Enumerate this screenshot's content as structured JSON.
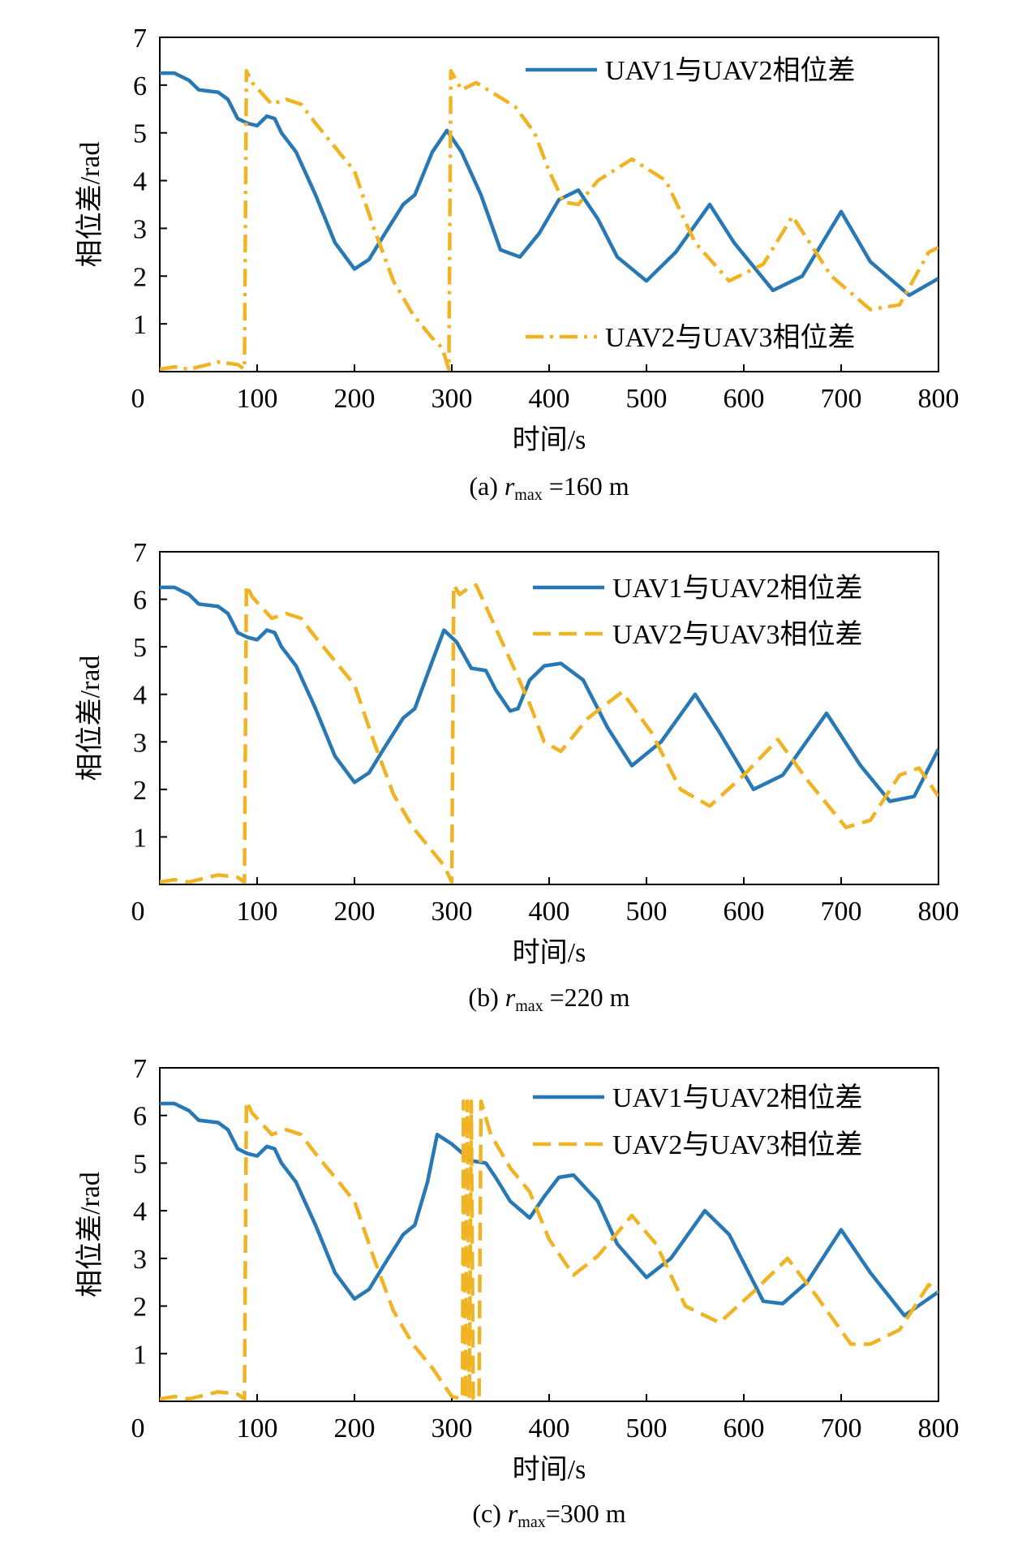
{
  "colors": {
    "series1": "#2878b5",
    "series2": "#f0b323",
    "axis": "#000000",
    "background": "#ffffff"
  },
  "chart_data": [
    {
      "type": "line",
      "caption_prefix": "(a) ",
      "caption_var": "r",
      "caption_sub": "max",
      "caption_suffix": " =160 m",
      "xlabel": "时间/s",
      "ylabel": "相位差/rad",
      "xlim": [
        0,
        800
      ],
      "ylim": [
        0,
        7
      ],
      "xticks": [
        "0",
        "100",
        "200",
        "300",
        "400",
        "500",
        "600",
        "700",
        "800"
      ],
      "yticks": [
        "1",
        "2",
        "3",
        "4",
        "5",
        "6",
        "7"
      ],
      "grid": false,
      "legend": "split: top-right and bottom-right",
      "series": [
        {
          "name": "UAV1与UAV2相位差",
          "style": "solid",
          "x": [
            0,
            15,
            30,
            40,
            60,
            70,
            80,
            90,
            100,
            110,
            118,
            125,
            140,
            160,
            180,
            200,
            215,
            230,
            250,
            262,
            280,
            295,
            310,
            330,
            350,
            370,
            390,
            410,
            430,
            450,
            470,
            500,
            530,
            565,
            590,
            630,
            660,
            700,
            730,
            770,
            800
          ],
          "y": [
            6.25,
            6.25,
            6.1,
            5.9,
            5.85,
            5.7,
            5.3,
            5.2,
            5.15,
            5.35,
            5.3,
            5.0,
            4.6,
            3.7,
            2.7,
            2.15,
            2.35,
            2.85,
            3.5,
            3.7,
            4.6,
            5.05,
            4.6,
            3.7,
            2.55,
            2.4,
            2.9,
            3.6,
            3.8,
            3.2,
            2.4,
            1.9,
            2.5,
            3.5,
            2.7,
            1.7,
            2.0,
            3.35,
            2.3,
            1.6,
            1.95
          ]
        },
        {
          "name": "UAV2与UAV3相位差",
          "style": "dashdot",
          "x": [
            0,
            15,
            30,
            50,
            60,
            80,
            87,
            89,
            95,
            115,
            130,
            145,
            160,
            180,
            200,
            220,
            240,
            260,
            280,
            290,
            297,
            299,
            310,
            325,
            345,
            365,
            385,
            400,
            415,
            430,
            450,
            485,
            520,
            550,
            585,
            620,
            650,
            690,
            730,
            760,
            790,
            800
          ],
          "y": [
            0.05,
            0.1,
            0.05,
            0.15,
            0.2,
            0.15,
            0.05,
            6.3,
            6.05,
            5.6,
            5.7,
            5.6,
            5.2,
            4.7,
            4.2,
            3.0,
            1.9,
            1.2,
            0.7,
            0.5,
            0.05,
            6.3,
            5.9,
            6.05,
            5.8,
            5.55,
            5.0,
            4.2,
            3.55,
            3.5,
            4.0,
            4.45,
            4.0,
            2.7,
            1.9,
            2.25,
            3.25,
            2.0,
            1.3,
            1.4,
            2.5,
            2.6
          ]
        }
      ]
    },
    {
      "type": "line",
      "caption_prefix": "(b) ",
      "caption_var": "r",
      "caption_sub": "max",
      "caption_suffix": " =220 m",
      "xlabel": "时间/s",
      "ylabel": "相位差/rad",
      "xlim": [
        0,
        800
      ],
      "ylim": [
        0,
        7
      ],
      "xticks": [
        "0",
        "100",
        "200",
        "300",
        "400",
        "500",
        "600",
        "700",
        "800"
      ],
      "yticks": [
        "1",
        "2",
        "3",
        "4",
        "5",
        "6",
        "7"
      ],
      "grid": false,
      "legend": "top-right",
      "series": [
        {
          "name": "UAV1与UAV2相位差",
          "style": "solid",
          "x": [
            0,
            15,
            30,
            40,
            60,
            70,
            80,
            90,
            100,
            110,
            118,
            125,
            140,
            160,
            180,
            200,
            215,
            230,
            250,
            262,
            280,
            292,
            305,
            320,
            335,
            345,
            360,
            368,
            380,
            395,
            412,
            435,
            460,
            485,
            515,
            550,
            575,
            610,
            640,
            685,
            720,
            750,
            775,
            800
          ],
          "y": [
            6.25,
            6.25,
            6.1,
            5.9,
            5.85,
            5.7,
            5.3,
            5.2,
            5.15,
            5.35,
            5.3,
            5.0,
            4.6,
            3.7,
            2.7,
            2.15,
            2.35,
            2.85,
            3.5,
            3.7,
            4.7,
            5.35,
            5.1,
            4.55,
            4.5,
            4.1,
            3.65,
            3.7,
            4.3,
            4.6,
            4.65,
            4.3,
            3.3,
            2.5,
            3.0,
            4.0,
            3.2,
            2.0,
            2.3,
            3.6,
            2.5,
            1.75,
            1.85,
            2.85
          ]
        },
        {
          "name": "UAV2与UAV3相位差",
          "style": "dashed",
          "x": [
            0,
            15,
            30,
            50,
            60,
            80,
            87,
            89,
            95,
            115,
            130,
            145,
            160,
            180,
            200,
            220,
            240,
            260,
            280,
            292,
            300,
            302,
            308,
            318,
            325,
            345,
            365,
            380,
            395,
            412,
            440,
            475,
            505,
            535,
            565,
            600,
            635,
            665,
            705,
            730,
            760,
            780,
            800
          ],
          "y": [
            0.05,
            0.1,
            0.05,
            0.15,
            0.2,
            0.15,
            0.05,
            6.3,
            6.05,
            5.6,
            5.7,
            5.6,
            5.2,
            4.7,
            4.2,
            3.0,
            1.9,
            1.2,
            0.7,
            0.4,
            0.05,
            6.3,
            6.1,
            6.25,
            6.3,
            5.4,
            4.5,
            3.8,
            3.0,
            2.8,
            3.5,
            4.05,
            3.2,
            2.0,
            1.65,
            2.3,
            3.05,
            2.2,
            1.2,
            1.35,
            2.3,
            2.45,
            1.85
          ]
        }
      ]
    },
    {
      "type": "line",
      "caption_prefix": "(c) ",
      "caption_var": "r",
      "caption_sub": "max",
      "caption_suffix": "=300 m",
      "xlabel": "时间/s",
      "ylabel": "相位差/rad",
      "xlim": [
        0,
        800
      ],
      "ylim": [
        0,
        7
      ],
      "xticks": [
        "0",
        "100",
        "200",
        "300",
        "400",
        "500",
        "600",
        "700",
        "800"
      ],
      "yticks": [
        "1",
        "2",
        "3",
        "4",
        "5",
        "6",
        "7"
      ],
      "grid": false,
      "legend": "top-right",
      "series": [
        {
          "name": "UAV1与UAV2相位差",
          "style": "solid",
          "x": [
            0,
            15,
            30,
            40,
            60,
            70,
            80,
            90,
            100,
            110,
            118,
            125,
            140,
            160,
            180,
            200,
            215,
            230,
            250,
            262,
            275,
            285,
            300,
            320,
            335,
            345,
            360,
            380,
            395,
            410,
            425,
            450,
            470,
            500,
            525,
            560,
            585,
            620,
            640,
            665,
            700,
            730,
            765,
            800
          ],
          "y": [
            6.25,
            6.25,
            6.1,
            5.9,
            5.85,
            5.7,
            5.3,
            5.2,
            5.15,
            5.35,
            5.3,
            5.0,
            4.6,
            3.7,
            2.7,
            2.15,
            2.35,
            2.85,
            3.5,
            3.7,
            4.6,
            5.6,
            5.4,
            5.05,
            5.0,
            4.7,
            4.2,
            3.85,
            4.3,
            4.7,
            4.75,
            4.2,
            3.3,
            2.6,
            3.0,
            4.0,
            3.5,
            2.1,
            2.05,
            2.5,
            3.6,
            2.7,
            1.8,
            2.3
          ]
        },
        {
          "name": "UAV2与UAV3相位差",
          "style": "dashed",
          "x": [
            0,
            15,
            30,
            50,
            60,
            80,
            87,
            89,
            95,
            115,
            130,
            145,
            160,
            180,
            200,
            220,
            240,
            260,
            280,
            290,
            300,
            311,
            312,
            314,
            316,
            318,
            320,
            322,
            328,
            330,
            340,
            360,
            380,
            400,
            425,
            450,
            485,
            510,
            540,
            575,
            610,
            645,
            675,
            710,
            730,
            760,
            790,
            800
          ],
          "y": [
            0.05,
            0.1,
            0.05,
            0.15,
            0.2,
            0.15,
            0.05,
            6.3,
            6.05,
            5.6,
            5.7,
            5.6,
            5.2,
            4.7,
            4.2,
            3.0,
            1.9,
            1.2,
            0.7,
            0.4,
            0.1,
            0.05,
            6.3,
            0.05,
            6.3,
            0.05,
            6.3,
            0.05,
            0.05,
            6.3,
            5.6,
            4.9,
            4.4,
            3.4,
            2.65,
            3.05,
            3.9,
            3.3,
            2.0,
            1.65,
            2.3,
            3.0,
            2.2,
            1.2,
            1.2,
            1.5,
            2.45,
            2.3
          ]
        }
      ]
    }
  ]
}
